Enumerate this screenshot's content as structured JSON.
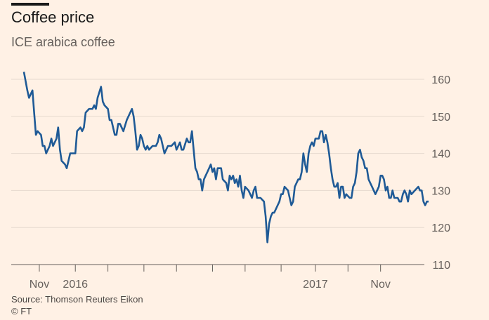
{
  "header": {
    "title": "Coffee price",
    "subtitle": "ICE arabica coffee"
  },
  "footer": {
    "source": "Source: Thomson Reuters Eikon",
    "credit": "© FT"
  },
  "colors": {
    "background": "#fff1e5",
    "line": "#1f5a96",
    "grid": "#e6d9ce",
    "text": "#66605c"
  },
  "chart_data": {
    "type": "line",
    "title": "Coffee price",
    "subtitle": "ICE arabica coffee",
    "xlabel": "",
    "ylabel": "",
    "ylim": [
      110,
      160
    ],
    "yticks": [
      110,
      120,
      130,
      140,
      150,
      160
    ],
    "y_axis_side": "right",
    "grid": true,
    "xticks": [
      {
        "label": "Nov",
        "t": 0.045
      },
      {
        "label": "2016",
        "t": 0.15
      },
      {
        "label": "",
        "t": 0.245
      },
      {
        "label": "",
        "t": 0.35
      },
      {
        "label": "",
        "t": 0.445
      },
      {
        "label": "",
        "t": 0.55
      },
      {
        "label": "",
        "t": 0.645
      },
      {
        "label": "",
        "t": 0.75
      },
      {
        "label": "2017",
        "t": 0.85
      },
      {
        "label": "",
        "t": 0.945
      },
      {
        "label": "Nov",
        "t": 1.04
      }
    ],
    "series": [
      {
        "name": "ICE arabica coffee",
        "points": [
          [
            0.0,
            162
          ],
          [
            0.01,
            157
          ],
          [
            0.015,
            155
          ],
          [
            0.02,
            156
          ],
          [
            0.025,
            157
          ],
          [
            0.03,
            151
          ],
          [
            0.035,
            145
          ],
          [
            0.04,
            146
          ],
          [
            0.05,
            145
          ],
          [
            0.055,
            142
          ],
          [
            0.06,
            142
          ],
          [
            0.065,
            140
          ],
          [
            0.075,
            142
          ],
          [
            0.08,
            144
          ],
          [
            0.085,
            142
          ],
          [
            0.095,
            144
          ],
          [
            0.1,
            147
          ],
          [
            0.105,
            141
          ],
          [
            0.11,
            138
          ],
          [
            0.12,
            137
          ],
          [
            0.125,
            136
          ],
          [
            0.135,
            140
          ],
          [
            0.145,
            140
          ],
          [
            0.15,
            140
          ],
          [
            0.155,
            146
          ],
          [
            0.165,
            147
          ],
          [
            0.17,
            146
          ],
          [
            0.175,
            147
          ],
          [
            0.18,
            151
          ],
          [
            0.19,
            152
          ],
          [
            0.2,
            152
          ],
          [
            0.205,
            153
          ],
          [
            0.21,
            152
          ],
          [
            0.215,
            155
          ],
          [
            0.225,
            158
          ],
          [
            0.23,
            154
          ],
          [
            0.235,
            153
          ],
          [
            0.245,
            152
          ],
          [
            0.25,
            149
          ],
          [
            0.255,
            149
          ],
          [
            0.265,
            145
          ],
          [
            0.27,
            145
          ],
          [
            0.275,
            148
          ],
          [
            0.28,
            148
          ],
          [
            0.29,
            146
          ],
          [
            0.3,
            149
          ],
          [
            0.31,
            151
          ],
          [
            0.315,
            152
          ],
          [
            0.32,
            150
          ],
          [
            0.325,
            146
          ],
          [
            0.33,
            141
          ],
          [
            0.335,
            142
          ],
          [
            0.34,
            145
          ],
          [
            0.345,
            144
          ],
          [
            0.35,
            142
          ],
          [
            0.355,
            141
          ],
          [
            0.36,
            142
          ],
          [
            0.365,
            141
          ],
          [
            0.375,
            142
          ],
          [
            0.385,
            142
          ],
          [
            0.39,
            143
          ],
          [
            0.395,
            145
          ],
          [
            0.4,
            144
          ],
          [
            0.405,
            142
          ],
          [
            0.41,
            140
          ],
          [
            0.42,
            142
          ],
          [
            0.43,
            142
          ],
          [
            0.44,
            143
          ],
          [
            0.445,
            141
          ],
          [
            0.45,
            142
          ],
          [
            0.455,
            143
          ],
          [
            0.46,
            141
          ],
          [
            0.465,
            141
          ],
          [
            0.475,
            144
          ],
          [
            0.48,
            143
          ],
          [
            0.485,
            143
          ],
          [
            0.49,
            146
          ],
          [
            0.495,
            141
          ],
          [
            0.5,
            136
          ],
          [
            0.505,
            135
          ],
          [
            0.51,
            133
          ],
          [
            0.515,
            133
          ],
          [
            0.52,
            130
          ],
          [
            0.525,
            133
          ],
          [
            0.53,
            134
          ],
          [
            0.535,
            135
          ],
          [
            0.545,
            137
          ],
          [
            0.55,
            135
          ],
          [
            0.555,
            136
          ],
          [
            0.56,
            133
          ],
          [
            0.565,
            136
          ],
          [
            0.575,
            136
          ],
          [
            0.58,
            133
          ],
          [
            0.59,
            132
          ],
          [
            0.595,
            130
          ],
          [
            0.6,
            134
          ],
          [
            0.605,
            133
          ],
          [
            0.61,
            134
          ],
          [
            0.615,
            132
          ],
          [
            0.62,
            133
          ],
          [
            0.625,
            131
          ],
          [
            0.63,
            134
          ],
          [
            0.635,
            130
          ],
          [
            0.64,
            128
          ],
          [
            0.645,
            131
          ],
          [
            0.655,
            130
          ],
          [
            0.665,
            128
          ],
          [
            0.67,
            130
          ],
          [
            0.675,
            131
          ],
          [
            0.68,
            128
          ],
          [
            0.69,
            128
          ],
          [
            0.7,
            127
          ],
          [
            0.705,
            123
          ],
          [
            0.71,
            116
          ],
          [
            0.715,
            121
          ],
          [
            0.72,
            123
          ],
          [
            0.725,
            124
          ],
          [
            0.73,
            124
          ],
          [
            0.74,
            126
          ],
          [
            0.745,
            127
          ],
          [
            0.75,
            129
          ],
          [
            0.755,
            129
          ],
          [
            0.76,
            131
          ],
          [
            0.77,
            130
          ],
          [
            0.775,
            128
          ],
          [
            0.78,
            126
          ],
          [
            0.785,
            127
          ],
          [
            0.79,
            131
          ],
          [
            0.8,
            133
          ],
          [
            0.805,
            133
          ],
          [
            0.81,
            135
          ],
          [
            0.815,
            140
          ],
          [
            0.82,
            137
          ],
          [
            0.825,
            135
          ],
          [
            0.83,
            140
          ],
          [
            0.835,
            142
          ],
          [
            0.84,
            143
          ],
          [
            0.845,
            142
          ],
          [
            0.85,
            144
          ],
          [
            0.86,
            144
          ],
          [
            0.865,
            146
          ],
          [
            0.87,
            146
          ],
          [
            0.875,
            143
          ],
          [
            0.88,
            145
          ],
          [
            0.885,
            143
          ],
          [
            0.89,
            140
          ],
          [
            0.895,
            136
          ],
          [
            0.9,
            133
          ],
          [
            0.905,
            131
          ],
          [
            0.91,
            131
          ],
          [
            0.915,
            132
          ],
          [
            0.92,
            128
          ],
          [
            0.925,
            131
          ],
          [
            0.93,
            131
          ],
          [
            0.935,
            128
          ],
          [
            0.94,
            129
          ],
          [
            0.95,
            128
          ],
          [
            0.955,
            128
          ],
          [
            0.96,
            131
          ],
          [
            0.965,
            132
          ],
          [
            0.97,
            135
          ],
          [
            0.975,
            140
          ],
          [
            0.98,
            141
          ],
          [
            0.985,
            139
          ],
          [
            0.99,
            138
          ],
          [
            0.995,
            136
          ],
          [
            1.0,
            136
          ],
          [
            1.005,
            133
          ],
          [
            1.01,
            132
          ],
          [
            1.015,
            131
          ],
          [
            1.025,
            129
          ],
          [
            1.035,
            131
          ],
          [
            1.04,
            134
          ],
          [
            1.045,
            134
          ],
          [
            1.05,
            133
          ],
          [
            1.055,
            130
          ],
          [
            1.06,
            131
          ],
          [
            1.065,
            128
          ],
          [
            1.07,
            128
          ],
          [
            1.075,
            130
          ],
          [
            1.08,
            128
          ],
          [
            1.09,
            128
          ],
          [
            1.095,
            127
          ],
          [
            1.1,
            127
          ],
          [
            1.105,
            129
          ],
          [
            1.11,
            130
          ],
          [
            1.115,
            129
          ],
          [
            1.12,
            127
          ],
          [
            1.125,
            130
          ],
          [
            1.13,
            129
          ],
          [
            1.14,
            130
          ],
          [
            1.15,
            131
          ],
          [
            1.155,
            130
          ],
          [
            1.16,
            130
          ],
          [
            1.165,
            127
          ],
          [
            1.17,
            126
          ],
          [
            1.175,
            127
          ],
          [
            1.18,
            127
          ]
        ]
      }
    ]
  }
}
